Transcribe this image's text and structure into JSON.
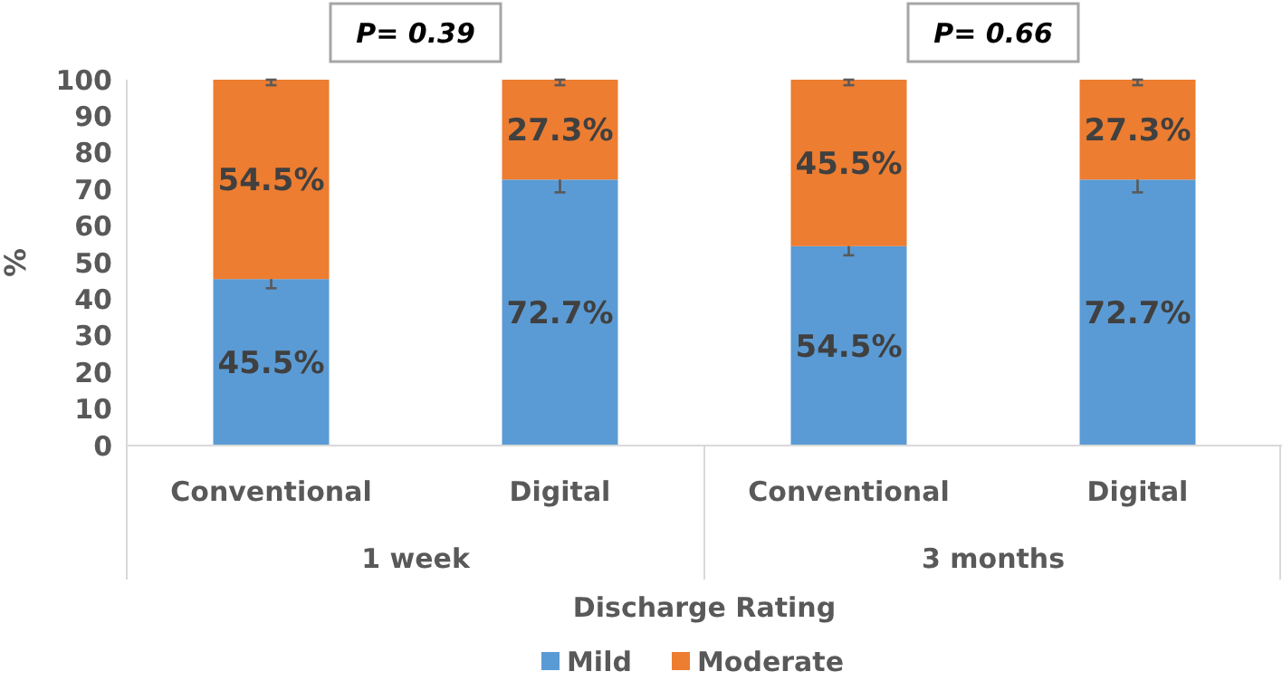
{
  "chart_data": {
    "type": "bar",
    "stacked": true,
    "xlabel": "Discharge Rating",
    "ylabel": "%",
    "categories": [
      "Conventional",
      "Digital",
      "Conventional",
      "Digital"
    ],
    "series": [
      {
        "name": "Mild",
        "color": "#5b9bd5",
        "values": [
          45.5,
          72.7,
          54.5,
          72.7
        ],
        "errors": [
          2.5,
          3.5,
          2.5,
          3.5
        ],
        "value_labels": [
          "45.5%",
          "72.7%",
          "54.5%",
          "72.7%"
        ]
      },
      {
        "name": "Moderate",
        "color": "#ed7d31",
        "values": [
          54.5,
          27.3,
          45.5,
          27.3
        ],
        "errors": [
          [
            98.5,
            100
          ],
          [
            98.5,
            100
          ],
          [
            98.5,
            100
          ],
          [
            98.5,
            100
          ]
        ],
        "value_labels": [
          "54.5%",
          "27.3%",
          "45.5%",
          "27.3%"
        ]
      }
    ],
    "annotations": [
      "P= 0.39",
      "P= 0.66",
      "1 week",
      "3 months"
    ],
    "ylim": [
      0,
      100
    ],
    "yticks": [
      0,
      10,
      20,
      30,
      40,
      50,
      60,
      70,
      80,
      90,
      100
    ],
    "grid": false,
    "legend": "bottom"
  }
}
